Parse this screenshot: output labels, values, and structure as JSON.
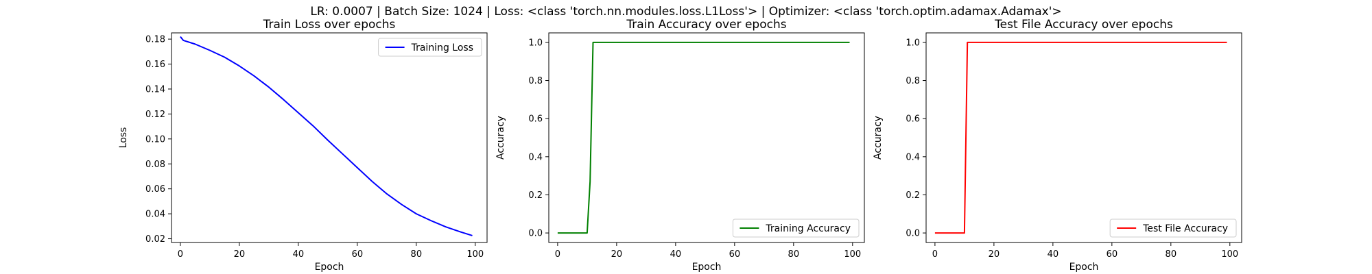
{
  "suptitle": "LR: 0.0007 | Batch Size: 1024 | Loss: <class 'torch.nn.modules.loss.L1Loss'> | Optimizer: <class 'torch.optim.adamax.Adamax'>",
  "chart_data": [
    {
      "type": "line",
      "title": "Train Loss over epochs",
      "xlabel": "Epoch",
      "ylabel": "Loss",
      "xlim": [
        -3,
        104
      ],
      "ylim": [
        0.017,
        0.185
      ],
      "xticks": [
        0,
        20,
        40,
        60,
        80,
        100
      ],
      "yticks": [
        0.02,
        0.04,
        0.06,
        0.08,
        0.1,
        0.12,
        0.14,
        0.16,
        0.18
      ],
      "ytick_labels": [
        "0.02",
        "0.04",
        "0.06",
        "0.08",
        "0.10",
        "0.12",
        "0.14",
        "0.16",
        "0.18"
      ],
      "legend_position": "upper-right",
      "grid": false,
      "series": [
        {
          "name": "Training Loss",
          "color": "#0000ff",
          "x": [
            0,
            1,
            5,
            10,
            15,
            20,
            25,
            30,
            35,
            40,
            45,
            50,
            55,
            60,
            65,
            70,
            75,
            80,
            85,
            90,
            95,
            99
          ],
          "y": [
            0.182,
            0.179,
            0.176,
            0.171,
            0.1655,
            0.1585,
            0.1505,
            0.1415,
            0.1315,
            0.121,
            0.1105,
            0.099,
            0.088,
            0.077,
            0.066,
            0.056,
            0.0475,
            0.04,
            0.0345,
            0.0295,
            0.0255,
            0.0225
          ]
        }
      ]
    },
    {
      "type": "line",
      "title": "Train Accuracy over epochs",
      "xlabel": "Epoch",
      "ylabel": "Accuracy",
      "xlim": [
        -3,
        104
      ],
      "ylim": [
        -0.05,
        1.05
      ],
      "xticks": [
        0,
        20,
        40,
        60,
        80,
        100
      ],
      "yticks": [
        0.0,
        0.2,
        0.4,
        0.6,
        0.8,
        1.0
      ],
      "ytick_labels": [
        "0.0",
        "0.2",
        "0.4",
        "0.6",
        "0.8",
        "1.0"
      ],
      "legend_position": "lower-right",
      "grid": false,
      "series": [
        {
          "name": "Training Accuracy",
          "color": "#008000",
          "x": [
            0,
            10,
            11,
            12,
            99
          ],
          "y": [
            0.0,
            0.0,
            0.27,
            1.0,
            1.0
          ]
        }
      ]
    },
    {
      "type": "line",
      "title": "Test File Accuracy over epochs",
      "xlabel": "Epoch",
      "ylabel": "Accuracy",
      "xlim": [
        -3,
        104
      ],
      "ylim": [
        -0.05,
        1.05
      ],
      "xticks": [
        0,
        20,
        40,
        60,
        80,
        100
      ],
      "yticks": [
        0.0,
        0.2,
        0.4,
        0.6,
        0.8,
        1.0
      ],
      "ytick_labels": [
        "0.0",
        "0.2",
        "0.4",
        "0.6",
        "0.8",
        "1.0"
      ],
      "legend_position": "lower-right",
      "grid": false,
      "series": [
        {
          "name": "Test File Accuracy",
          "color": "#ff0000",
          "x": [
            0,
            10,
            11,
            99
          ],
          "y": [
            0.0,
            0.0,
            1.0,
            1.0
          ]
        }
      ]
    }
  ]
}
